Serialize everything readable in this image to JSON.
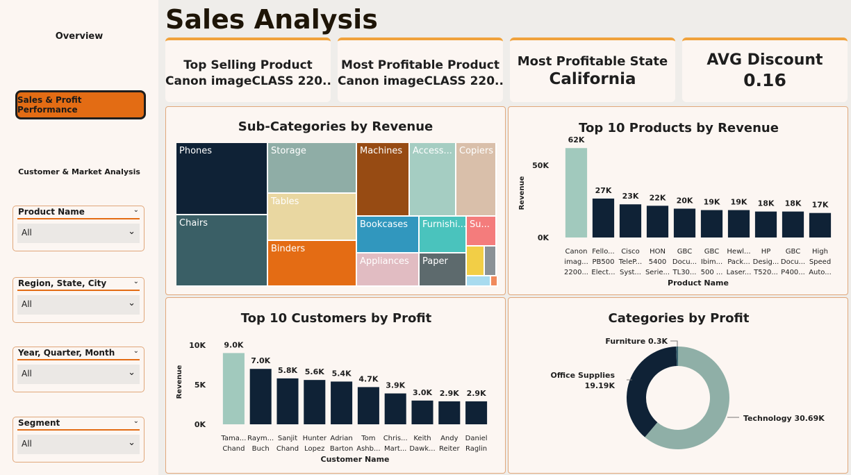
{
  "sidebar": {
    "overview": "Overview",
    "active": "Sales & Profit Performance",
    "customer": "Customer & Market Analysis",
    "slicers": [
      {
        "label": "Product Name",
        "value": "All"
      },
      {
        "label": "Region, State, City",
        "value": "All"
      },
      {
        "label": "Year, Quarter, Month",
        "value": "All"
      },
      {
        "label": "Segment",
        "value": "All"
      }
    ]
  },
  "title": "Sales Analysis",
  "kpis": [
    {
      "label": "Top Selling Product",
      "value": "Canon imageCLASS 220..."
    },
    {
      "label": "Most Profitable Product",
      "value": "Canon imageCLASS 220..."
    },
    {
      "label": "Most Profitable State",
      "value": "California"
    },
    {
      "label": "AVG Discount",
      "value": "0.16"
    }
  ],
  "treemap": {
    "title": "Sub-Categories by Revenue",
    "tiles": [
      "Phones",
      "Storage",
      "Machines",
      "Access...",
      "Copiers",
      "Chairs",
      "Tables",
      "Bookcases",
      "Furnishi...",
      "Su...",
      "Binders",
      "Appliances",
      "Paper"
    ]
  },
  "colors": {
    "accent": "#e36c14",
    "navy": "#0f2236",
    "highlight": "#a1c9bd"
  },
  "chart_data": [
    {
      "type": "bar",
      "title": "Top 10 Products by Revenue",
      "xlabel": "Product Name",
      "ylabel": "Revenue",
      "ylim": [
        0,
        65000
      ],
      "yticks": [
        "0K",
        "50K"
      ],
      "categories": [
        [
          "Canon",
          "imag...",
          "2200..."
        ],
        [
          "Fello...",
          "PB500",
          "Elect..."
        ],
        [
          "Cisco",
          "TeleP...",
          "Syst..."
        ],
        [
          "HON",
          "5400",
          "Serie..."
        ],
        [
          "GBC",
          "Docu...",
          "TL30..."
        ],
        [
          "GBC",
          "Ibim...",
          "500 ..."
        ],
        [
          "Hewl...",
          "Pack...",
          "Laser..."
        ],
        [
          "HP",
          "Desig...",
          "T520..."
        ],
        [
          "GBC",
          "Docu...",
          "P400..."
        ],
        [
          "High",
          "Speed",
          "Auto..."
        ]
      ],
      "values": [
        62000,
        27000,
        23000,
        22000,
        20000,
        19000,
        19000,
        18000,
        18000,
        17000
      ],
      "labels": [
        "62K",
        "27K",
        "23K",
        "22K",
        "20K",
        "19K",
        "19K",
        "18K",
        "18K",
        "17K"
      ]
    },
    {
      "type": "bar",
      "title": "Top 10 Customers by Profit",
      "xlabel": "Customer Name",
      "ylabel": "Revenue",
      "ylim": [
        0,
        10000
      ],
      "yticks": [
        "0K",
        "5K",
        "10K"
      ],
      "categories": [
        [
          "Tama...",
          "Chand"
        ],
        [
          "Raym...",
          "Buch"
        ],
        [
          "Sanjit",
          "Chand"
        ],
        [
          "Hunter",
          "Lopez"
        ],
        [
          "Adrian",
          "Barton"
        ],
        [
          "Tom",
          "Ashb..."
        ],
        [
          "Chris...",
          "Mart..."
        ],
        [
          "Keith",
          "Dawk..."
        ],
        [
          "Andy",
          "Reiter"
        ],
        [
          "Daniel",
          "Raglin"
        ]
      ],
      "values": [
        9000,
        7000,
        5800,
        5600,
        5400,
        4700,
        3900,
        3000,
        2900,
        2900
      ],
      "labels": [
        "9.0K",
        "7.0K",
        "5.8K",
        "5.6K",
        "5.4K",
        "4.7K",
        "3.9K",
        "3.0K",
        "2.9K",
        "2.9K"
      ]
    },
    {
      "type": "pie",
      "title": "Categories by Profit",
      "slices": [
        {
          "name": "Technology",
          "value": 30.69,
          "label": "Technology 30.69K",
          "color": "#8fafa7"
        },
        {
          "name": "Office Supplies",
          "value": 19.19,
          "label": "Office Supplies",
          "label2": "19.19K",
          "color": "#0f2236"
        },
        {
          "name": "Furniture",
          "value": 0.3,
          "label": "Furniture 0.3K",
          "color": "#3a6470"
        }
      ]
    }
  ]
}
